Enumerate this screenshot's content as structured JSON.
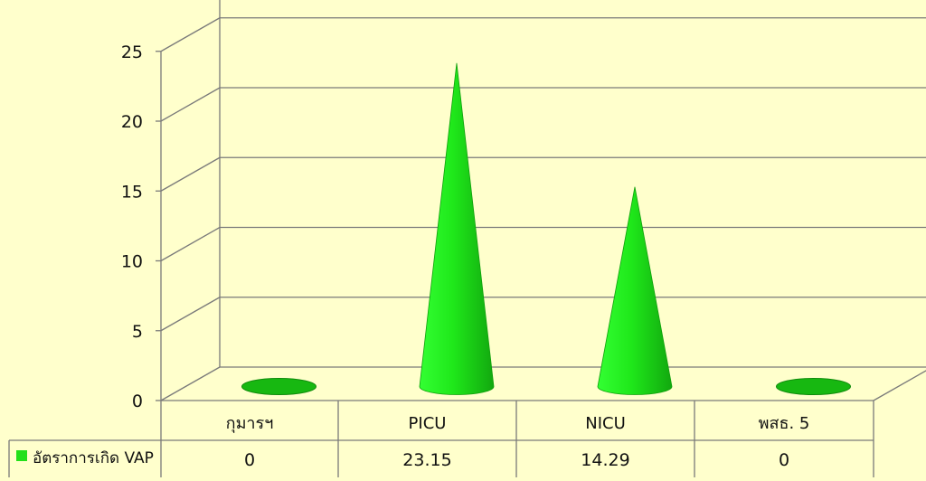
{
  "chart_data": {
    "type": "bar",
    "categories": [
      "กุมารฯ",
      "PICU",
      "NICU",
      "พสธ. 5"
    ],
    "series": [
      {
        "name": "อัตราการเกิด VAP",
        "values": [
          0,
          23.15,
          14.29,
          0
        ],
        "color": "#22e01a"
      }
    ],
    "table_values": [
      "0",
      "23.15",
      "14.29",
      "0"
    ],
    "ylim": [
      0,
      25
    ],
    "yticks": [
      "0",
      "5",
      "10",
      "15",
      "20",
      "25"
    ],
    "grid": true,
    "legend": "data-table",
    "colors": {
      "background": "#ffffcc",
      "grid": "#7a7a7a",
      "cone": "#22e01a",
      "cone_dark": "#159a10"
    }
  }
}
